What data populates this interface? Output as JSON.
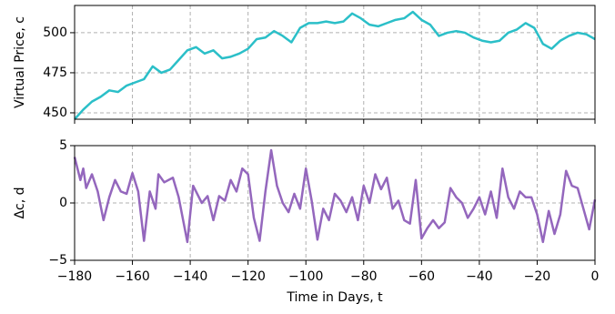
{
  "chart_data": [
    {
      "type": "line",
      "ylabel": "Virtual Price, c",
      "x": [
        -180,
        -177,
        -174,
        -171,
        -168,
        -165,
        -162,
        -159,
        -156,
        -153,
        -150,
        -147,
        -144,
        -141,
        -138,
        -135,
        -132,
        -129,
        -126,
        -123,
        -120,
        -117,
        -114,
        -111,
        -108,
        -105,
        -102,
        -99,
        -96,
        -93,
        -90,
        -87,
        -84,
        -81,
        -78,
        -75,
        -72,
        -69,
        -66,
        -63,
        -60,
        -57,
        -54,
        -51,
        -48,
        -45,
        -42,
        -39,
        -36,
        -33,
        -30,
        -27,
        -24,
        -21,
        -18,
        -15,
        -12,
        -9,
        -6,
        -3,
        0
      ],
      "series": [
        {
          "color": "#2bbfc8",
          "values": [
            446,
            452,
            457,
            460,
            464,
            463,
            467,
            469,
            471,
            479,
            475,
            477,
            483,
            489,
            491,
            487,
            489,
            484,
            485,
            487,
            490,
            496,
            497,
            501,
            498,
            494,
            503,
            506,
            506,
            507,
            506,
            507,
            512,
            509,
            505,
            504,
            506,
            508,
            509,
            513,
            508,
            505,
            498,
            500,
            501,
            500,
            497,
            495,
            494,
            495,
            500,
            502,
            506,
            503,
            493,
            490,
            495,
            498,
            500,
            499,
            496
          ]
        }
      ],
      "xlim": [
        -180,
        0
      ],
      "xticks": [
        -180,
        -160,
        -140,
        -120,
        -100,
        -80,
        -60,
        -40,
        -20,
        0
      ],
      "ylim": [
        446,
        517
      ],
      "yticks": [
        450,
        475,
        500
      ],
      "grid": true
    },
    {
      "type": "line",
      "ylabel": "Δc, d",
      "xlabel": "Time in Days, t",
      "x": [
        -180,
        -178,
        -177,
        -176,
        -174,
        -172,
        -170,
        -168,
        -166,
        -164,
        -162,
        -160,
        -158,
        -156,
        -154,
        -152,
        -151,
        -149,
        -146,
        -144,
        -141,
        -139,
        -136,
        -134,
        -132,
        -130,
        -128,
        -126,
        -124,
        -122,
        -120,
        -118,
        -116,
        -114,
        -112,
        -110,
        -108,
        -106,
        -104,
        -102,
        -100,
        -98,
        -96,
        -94,
        -92,
        -90,
        -88,
        -86,
        -84,
        -82,
        -80,
        -78,
        -76,
        -74,
        -72,
        -70,
        -68,
        -66,
        -64,
        -62,
        -60,
        -58,
        -56,
        -54,
        -52,
        -50,
        -48,
        -46,
        -44,
        -42,
        -40,
        -38,
        -36,
        -34,
        -32,
        -30,
        -28,
        -26,
        -24,
        -22,
        -20,
        -18,
        -16,
        -14,
        -12,
        -10,
        -8,
        -6,
        -4,
        -2,
        0
      ],
      "series": [
        {
          "color": "#9467bd",
          "values": [
            4,
            2,
            3,
            1.3,
            2.5,
            1,
            -1.5,
            0.5,
            2,
            1,
            0.8,
            2.6,
            1,
            -3.3,
            1,
            -0.5,
            2.5,
            1.8,
            2.2,
            0.5,
            -3.4,
            1.5,
            0,
            0.6,
            -1.5,
            0.6,
            0.2,
            2,
            1,
            3,
            2.5,
            -1.3,
            -3.3,
            1,
            4.6,
            1.5,
            0,
            -0.8,
            0.8,
            -0.5,
            3,
            0.2,
            -3.2,
            -0.5,
            -1.5,
            0.8,
            0.2,
            -0.8,
            0.5,
            -1.5,
            1.5,
            0,
            2.5,
            1.2,
            2.2,
            -0.5,
            0.2,
            -1.5,
            -1.8,
            2,
            -3.1,
            -2.2,
            -1.5,
            -2.2,
            -1.7,
            1.3,
            0.5,
            0,
            -1.3,
            -0.5,
            0.5,
            -1,
            1,
            -1.3,
            3,
            0.5,
            -0.5,
            1,
            0.5,
            0.5,
            -1,
            -3.4,
            -0.7,
            -2.7,
            -1,
            2.8,
            1.5,
            1.3,
            -0.5,
            -2.3,
            0.3
          ]
        }
      ],
      "xlim": [
        -180,
        0
      ],
      "xticks": [
        {
          "value": -180,
          "label": "−180"
        },
        {
          "value": -160,
          "label": "−160"
        },
        {
          "value": -140,
          "label": "−140"
        },
        {
          "value": -120,
          "label": "−120"
        },
        {
          "value": -100,
          "label": "−100"
        },
        {
          "value": -80,
          "label": "−80"
        },
        {
          "value": -60,
          "label": "−60"
        },
        {
          "value": -40,
          "label": "−40"
        },
        {
          "value": -20,
          "label": "−20"
        },
        0
      ],
      "ylim": [
        -5,
        5
      ],
      "yticks": [
        {
          "value": -5,
          "label": "−5"
        },
        0,
        5
      ],
      "grid": true
    }
  ]
}
